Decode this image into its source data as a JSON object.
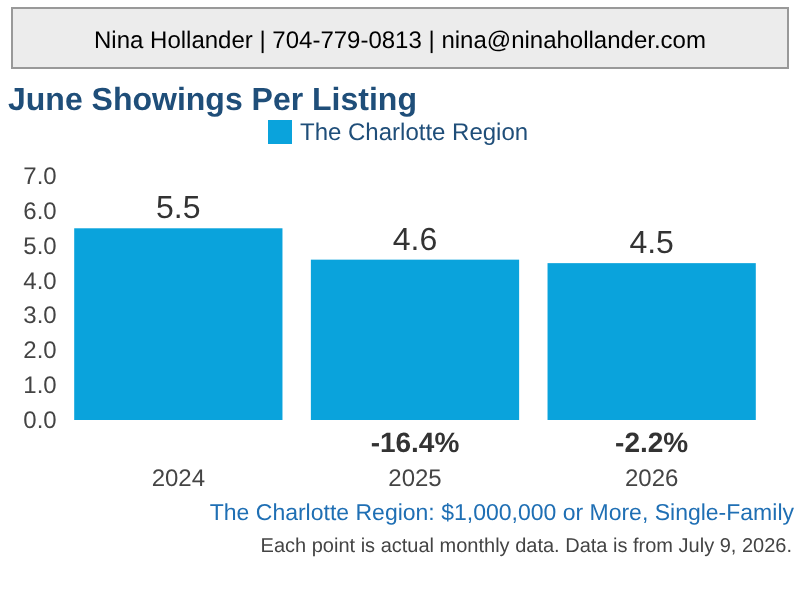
{
  "chart_data": {
    "type": "bar",
    "title": "June Showings Per Listing",
    "subtitle": "The Charlotte Region: $1,000,000 or More, Single-Family",
    "categories": [
      "2024",
      "2025",
      "2026"
    ],
    "series": [
      {
        "name": "The Charlotte Region",
        "color": "#0aa3dc",
        "values": [
          5.5,
          4.6,
          4.5
        ]
      }
    ],
    "ylim": [
      0,
      7
    ],
    "yticks": [
      {
        "value": 0,
        "label": "0.0"
      },
      {
        "value": 1,
        "label": "1.0"
      },
      {
        "value": 2,
        "label": "2.0"
      },
      {
        "value": 3,
        "label": "3.0"
      },
      {
        "value": 4,
        "label": "4.0"
      },
      {
        "value": 5,
        "label": "5.0"
      },
      {
        "value": 6,
        "label": "6.0"
      },
      {
        "value": 7,
        "label": "7.0"
      }
    ],
    "data_labels": true,
    "legend": "top",
    "grid": false,
    "annotations": [
      {
        "text": "Nina Hollander | 704-779-0813 | nina@ninahollander.com"
      },
      "-16.4%",
      "-2.2%",
      {
        "text": "Each point is actual monthly data. Data is from July 9, 2026."
      }
    ]
  }
}
